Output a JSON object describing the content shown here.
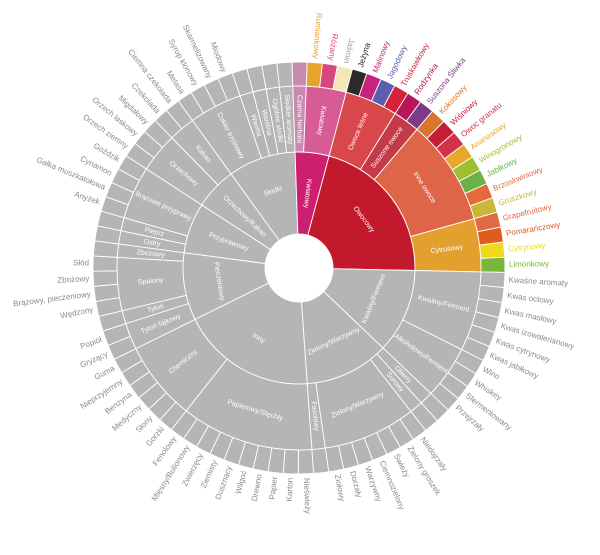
{
  "chart_data": {
    "type": "sunburst",
    "center": "",
    "colors": {
      "grey": "#b5b5b5",
      "grey_text": "#8a8a8a",
      "owocowy": "#c21a2c",
      "kwiatowy": "#cc1f70",
      "jagody": "#d8484b",
      "suszone": "#c43a48",
      "inne": "#de6548",
      "cytrusowy": "#e4a02e",
      "kwiatowy_l2": "#d75c96"
    },
    "categories": [
      {
        "name": "Owocowy",
        "color": "#c21a2c",
        "children": [
          {
            "name": "Owoce leśne",
            "color": "#d8484b",
            "children": [
              {
                "name": "Jeżyna",
                "color": "#2b2b2b"
              },
              {
                "name": "Malinowy",
                "color": "#c7227c"
              },
              {
                "name": "Jagodowy",
                "color": "#5a5fb0"
              },
              {
                "name": "Truskawkowy",
                "color": "#d4223a"
              }
            ]
          },
          {
            "name": "Suszone owoce",
            "color": "#c43a48",
            "children": [
              {
                "name": "Rodzynka",
                "color": "#b6165a"
              },
              {
                "name": "Suszona Śliwka",
                "color": "#7d3a86"
              }
            ]
          },
          {
            "name": "Inne owoce",
            "color": "#de6548",
            "children": [
              {
                "name": "Kokosowy",
                "color": "#d8762c"
              },
              {
                "name": "Wiśniowy",
                "color": "#c81c36"
              },
              {
                "name": "Owoc granatu",
                "color": "#d13448"
              },
              {
                "name": "Ananasowy",
                "color": "#e6a72a"
              },
              {
                "name": "Winogronowy",
                "color": "#9fbe32"
              },
              {
                "name": "Jabłkowy",
                "color": "#6bb246"
              },
              {
                "name": "Brzoskwiniowy",
                "color": "#e36a3a"
              },
              {
                "name": "Gruszkowy",
                "color": "#c9b738"
              }
            ]
          },
          {
            "name": "Cytrusowy",
            "color": "#e4a02e",
            "children": [
              {
                "name": "Grapefruitowy",
                "color": "#e06a43"
              },
              {
                "name": "Pomarańczowy",
                "color": "#e05b20"
              },
              {
                "name": "Cytrynowy",
                "color": "#f2d81a"
              },
              {
                "name": "Limonkowy",
                "color": "#79b73a"
              }
            ]
          }
        ]
      },
      {
        "name": "Kwaśny/Ferment",
        "children": [
          {
            "name": "Kwaśny/Ferment",
            "children": [
              {
                "name": "Kwaśne aromaty"
              },
              {
                "name": "Kwas octowy"
              },
              {
                "name": "Kwas masłowy"
              },
              {
                "name": "Kwas izowalerianowy"
              },
              {
                "name": "Kwas cytrynowy"
              },
              {
                "name": "Kwas jabłkowy"
              }
            ]
          },
          {
            "name": "Alkoholowy/Ferment",
            "children": [
              {
                "name": "Wino"
              },
              {
                "name": "Whiskey"
              },
              {
                "name": "Sfermentowany"
              },
              {
                "name": "Przejrzały"
              }
            ]
          }
        ]
      },
      {
        "name": "Zielony/Warzywny",
        "children": [
          {
            "name": "Oliwny",
            "children": [
              {
                "name": ""
              }
            ]
          },
          {
            "name": "Surowy",
            "children": [
              {
                "name": ""
              }
            ]
          },
          {
            "name": "Zielony/Warzywny",
            "children": [
              {
                "name": "Niedojrzały"
              },
              {
                "name": "Zielony groszek"
              },
              {
                "name": "Świeży"
              },
              {
                "name": "Ciemnozielony"
              },
              {
                "name": "Warzywny"
              },
              {
                "name": "Dorzały"
              },
              {
                "name": "Ziołowy"
              }
            ]
          },
          {
            "name": "Fasolowy",
            "children": [
              {
                "name": ""
              }
            ]
          }
        ]
      },
      {
        "name": "Inny",
        "children": [
          {
            "name": "Papierowy/Stęchły",
            "children": [
              {
                "name": "Nieświeży"
              },
              {
                "name": "Karton"
              },
              {
                "name": "Papier"
              },
              {
                "name": "Drewno"
              },
              {
                "name": "Wilgoć"
              },
              {
                "name": "Dusznący"
              },
              {
                "name": "Ziemisty"
              },
              {
                "name": "Zwierzęcy"
              },
              {
                "name": "Mięsny/Bulionowy"
              },
              {
                "name": "Fenolowy"
              }
            ]
          },
          {
            "name": "Chemiczny",
            "children": [
              {
                "name": "Gorzki"
              },
              {
                "name": "Słony"
              },
              {
                "name": "Medyczny"
              },
              {
                "name": "Benzyna"
              },
              {
                "name": "Nieprzyjemny"
              },
              {
                "name": "Guma"
              }
            ]
          }
        ]
      },
      {
        "name": "Pieczeniowy",
        "children": [
          {
            "name": "Tytoń fajkowy",
            "children": [
              {
                "name": "Gryzący"
              },
              {
                "name": "Popiół"
              }
            ]
          },
          {
            "name": "Tytoń",
            "children": [
              {
                "name": ""
              }
            ]
          },
          {
            "name": "Spalony",
            "children": [
              {
                "name": "Wędzony"
              },
              {
                "name": "Brązowy, pieczeniowy"
              },
              {
                "name": "Zbożowy"
              },
              {
                "name": "Słód"
              }
            ]
          },
          {
            "name": "Zbożowy",
            "children": [
              {
                "name": ""
              }
            ]
          }
        ]
      },
      {
        "name": "Przyprawowy",
        "children": [
          {
            "name": "Ostry",
            "children": [
              {
                "name": ""
              }
            ]
          },
          {
            "name": "Pieprz",
            "children": [
              {
                "name": ""
              }
            ]
          },
          {
            "name": "Brązowe przyprawy",
            "children": [
              {
                "name": "Anyżek"
              },
              {
                "name": "Gałka muszkatołowa"
              },
              {
                "name": "Cynamon"
              },
              {
                "name": "Goździk"
              }
            ]
          }
        ]
      },
      {
        "name": "Orzechowy/Kakao",
        "children": [
          {
            "name": "Orzechowy",
            "children": [
              {
                "name": "Orzech ziemny"
              },
              {
                "name": "Orzech laskowy"
              },
              {
                "name": "Migdałowy"
              }
            ]
          },
          {
            "name": "Kakao",
            "children": [
              {
                "name": "Czekolada"
              },
              {
                "name": "Ciemna czekolada"
              }
            ]
          }
        ]
      },
      {
        "name": "Słodki",
        "children": [
          {
            "name": "Cukier trzcinowy",
            "children": [
              {
                "name": "Melasa"
              },
              {
                "name": "Syrop klonowy"
              },
              {
                "name": "Skarmelizowany"
              },
              {
                "name": "Miodowy"
              }
            ]
          },
          {
            "name": "Wanilia",
            "children": [
              {
                "name": ""
              }
            ]
          },
          {
            "name": "Wanilina",
            "children": [
              {
                "name": ""
              }
            ]
          },
          {
            "name": "Ogólnie słodki",
            "children": [
              {
                "name": ""
              }
            ]
          },
          {
            "name": "Słodkie aromaty",
            "children": [
              {
                "name": ""
              }
            ]
          }
        ]
      },
      {
        "name": "Kwiatowy",
        "color": "#cc1f70",
        "children": [
          {
            "name": "Czarna herbata",
            "color": "#c98ab0",
            "children": [
              {
                "name": ""
              }
            ]
          },
          {
            "name": "Kwiatowy",
            "color": "#d75c96",
            "children": [
              {
                "name": "Rumiankowy",
                "color": "#e8a32a"
              },
              {
                "name": "Różany",
                "color": "#d9467e"
              },
              {
                "name": "Jaśmin",
                "color": "#f3e7b6"
              }
            ]
          }
        ]
      }
    ]
  }
}
